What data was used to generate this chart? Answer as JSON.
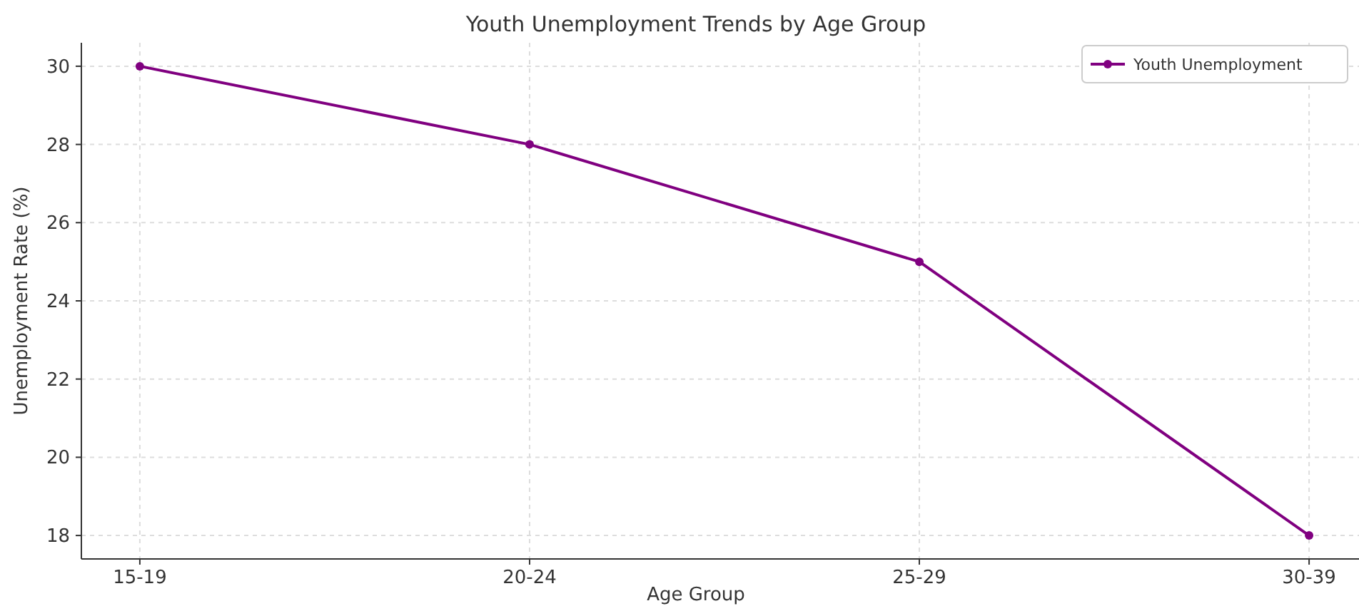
{
  "chart_data": {
    "type": "line",
    "title": "Youth Unemployment Trends by Age Group",
    "xlabel": "Age Group",
    "ylabel": "Unemployment Rate (%)",
    "categories": [
      "15-19",
      "20-24",
      "25-29",
      "30-39"
    ],
    "series": [
      {
        "name": "Youth Unemployment",
        "color": "#800080",
        "values": [
          30,
          28,
          25,
          18
        ]
      }
    ],
    "ylim": [
      17.4,
      30.6
    ],
    "yticks": [
      18,
      20,
      22,
      24,
      26,
      28,
      30
    ],
    "grid": true,
    "legend": "top right",
    "marker": "circle",
    "line_style": "solid"
  }
}
